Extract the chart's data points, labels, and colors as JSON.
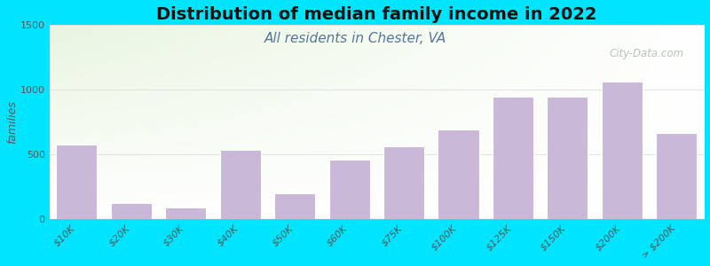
{
  "title": "Distribution of median family income in 2022",
  "subtitle": "All residents in Chester, VA",
  "ylabel": "families",
  "categories": [
    "$10K",
    "$20K",
    "$30K",
    "$40K",
    "$50K",
    "$60K",
    "$75K",
    "$100K",
    "$125K",
    "$150K",
    "$200K",
    "> $200K"
  ],
  "values": [
    570,
    120,
    90,
    530,
    200,
    460,
    560,
    690,
    940,
    940,
    1060,
    660
  ],
  "bar_color": "#c9b8d8",
  "bar_edge_color": "white",
  "background_outer": "#00e5ff",
  "background_plot_top_left": "#e8f5e0",
  "background_plot_right": "#f5f5f0",
  "background_plot_bottom": "#ffffff",
  "ylim": [
    0,
    1500
  ],
  "yticks": [
    0,
    500,
    1000,
    1500
  ],
  "title_fontsize": 14,
  "subtitle_fontsize": 11,
  "ylabel_fontsize": 9,
  "tick_fontsize": 8,
  "watermark": "City-Data.com",
  "watermark_color": "#b0b8b0"
}
